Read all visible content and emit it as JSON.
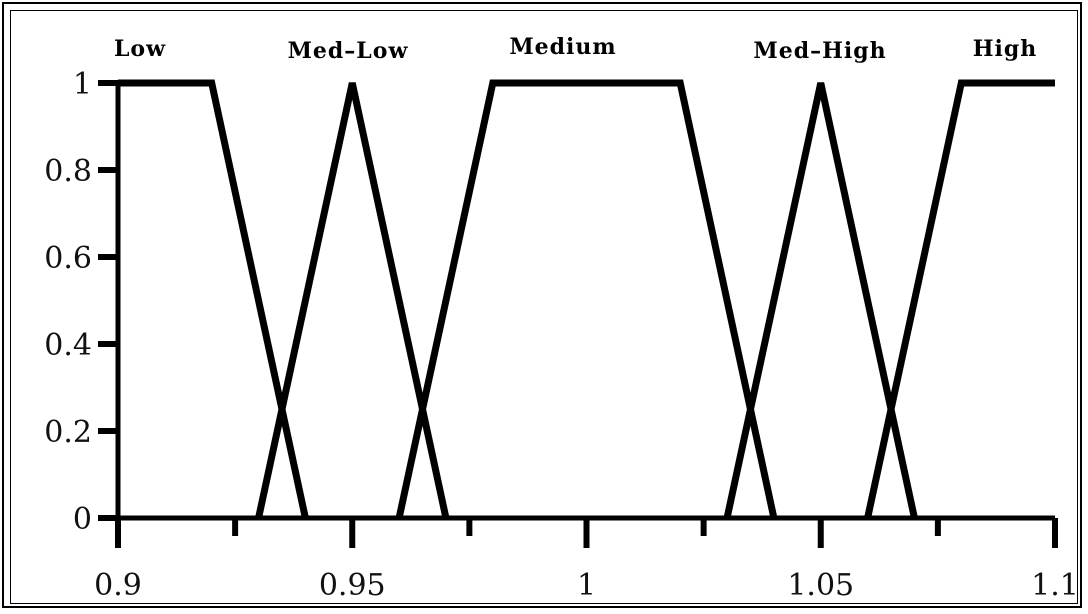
{
  "chart_data": {
    "type": "line",
    "title": "",
    "xlabel": "",
    "ylabel": "",
    "xlim": [
      0.9,
      1.1
    ],
    "ylim": [
      0,
      1
    ],
    "x_ticks": [
      "0.9",
      "0.95",
      "1",
      "1.05",
      "1.1"
    ],
    "x_tick_values": [
      0.9,
      0.95,
      1.0,
      1.05,
      1.1
    ],
    "x_minor_ticks": [
      0.925,
      0.975,
      1.025,
      1.075
    ],
    "y_ticks": [
      "0",
      "0.2",
      "0.4",
      "0.6",
      "0.8",
      "1"
    ],
    "y_tick_values": [
      0,
      0.2,
      0.4,
      0.6,
      0.8,
      1
    ],
    "grid": false,
    "line_color": "#000000",
    "series": [
      {
        "name": "Low",
        "x": [
          0.9,
          0.92,
          0.94
        ],
        "y": [
          1,
          1,
          0
        ]
      },
      {
        "name": "Med–Low",
        "x": [
          0.93,
          0.95,
          0.97
        ],
        "y": [
          0,
          1,
          0
        ]
      },
      {
        "name": "Medium",
        "x": [
          0.96,
          0.98,
          1.02,
          1.04
        ],
        "y": [
          0,
          1,
          1,
          0
        ]
      },
      {
        "name": "Med–High",
        "x": [
          1.03,
          1.05,
          1.07
        ],
        "y": [
          0,
          1,
          0
        ]
      },
      {
        "name": "High",
        "x": [
          1.06,
          1.08,
          1.1
        ],
        "y": [
          0,
          1,
          1
        ]
      }
    ]
  }
}
